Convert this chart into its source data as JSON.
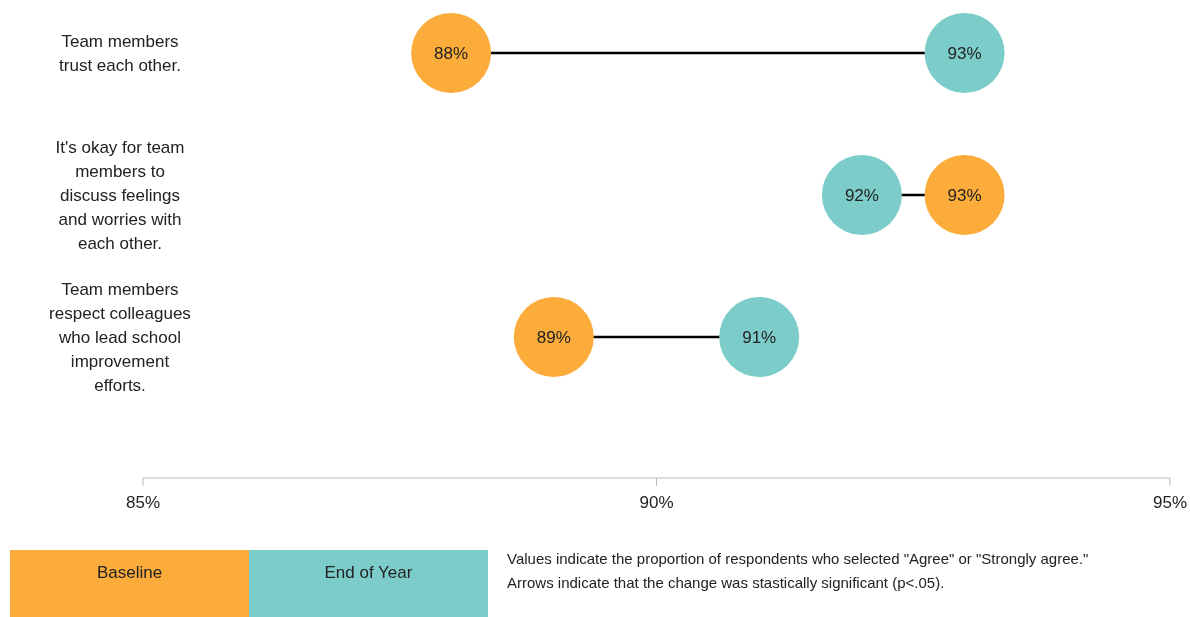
{
  "chart_data": {
    "type": "scatter",
    "orientation": "horizontal",
    "categories": [
      "Team members trust each other.",
      "It's okay for team members to discuss feelings and worries with each other.",
      "Team members respect colleagues who lead school improvement efforts."
    ],
    "series": [
      {
        "name": "Baseline",
        "color": "#fbac3a",
        "values": [
          88,
          93,
          89
        ],
        "value_labels": [
          "88%",
          "93%",
          "89%"
        ]
      },
      {
        "name": "End of Year",
        "color": "#7ccdc9",
        "values": [
          93,
          92,
          91
        ],
        "value_labels": [
          "93%",
          "92%",
          "91%"
        ]
      }
    ],
    "xlim": [
      85,
      95
    ],
    "xticks": [
      {
        "value": 85,
        "label": "85%"
      },
      {
        "value": 90,
        "label": "90%"
      },
      {
        "value": 95,
        "label": "95%"
      }
    ],
    "marker": "circle",
    "grid": false,
    "legend": "bottom left",
    "annotations": [
      "Values indicate the proportion of respondents who selected \"Agree\" or \"Strongly agree.\"",
      "Arrows indicate that the change was stastically significant (p<.05)."
    ]
  }
}
